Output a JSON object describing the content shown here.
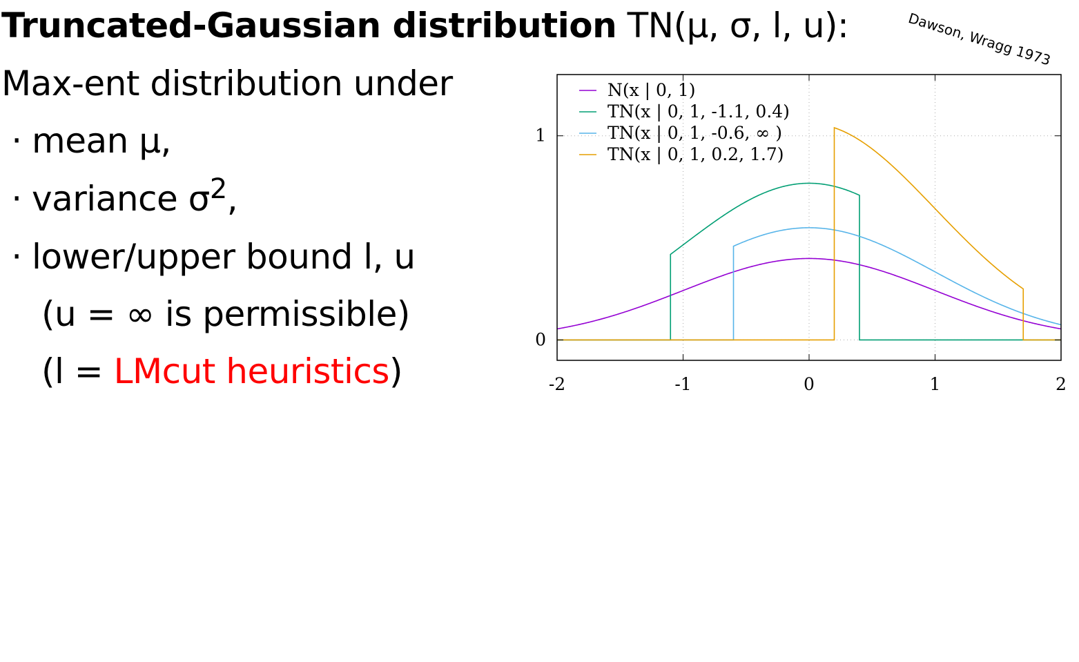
{
  "slide": {
    "title_bold": "Truncated-Gaussian distribution",
    "title_rest": " TN(μ, σ, l, u):",
    "citation": "Dawson, Wragg 1973",
    "intro": "Max-ent distribution under",
    "bullet_glyph": "·",
    "bullets": [
      "mean μ,",
      "variance σ",
      "lower/upper bound l, u"
    ],
    "superscript": "2",
    "bullet2_suffix": ",",
    "note1": "(u = ∞ is permissible)",
    "note2_open": "(l = ",
    "note2_highlight": "LMcut heuristics",
    "note2_close": ")",
    "highlight_color": "#ff0000"
  },
  "chart_data": {
    "type": "line",
    "xlim": [
      -2,
      2
    ],
    "ylim": [
      -0.1,
      1.3
    ],
    "xticks": [
      -2,
      -1,
      0,
      1,
      2
    ],
    "xtick_labels": [
      "-2",
      "-1",
      "0",
      "1",
      "2"
    ],
    "yticks": [
      0,
      1
    ],
    "ytick_labels": [
      "0",
      "1"
    ],
    "grid": true,
    "legend_position": "top-left",
    "series": [
      {
        "name": "N(x | 0, 1)",
        "mu": 0,
        "sigma": 1,
        "lower": null,
        "upper": null,
        "color": "#9400d3"
      },
      {
        "name": "TN(x | 0, 1, -1.1, 0.4)",
        "mu": 0,
        "sigma": 1,
        "lower": -1.1,
        "upper": 0.4,
        "color": "#009e73"
      },
      {
        "name": "TN(x | 0, 1, -0.6, ∞ )",
        "mu": 0,
        "sigma": 1,
        "lower": -0.6,
        "upper": null,
        "color": "#56b4e9"
      },
      {
        "name": "TN(x | 0, 1, 0.2, 1.7)",
        "mu": 0,
        "sigma": 1,
        "lower": 0.2,
        "upper": 1.7,
        "color": "#e69f00"
      }
    ]
  }
}
